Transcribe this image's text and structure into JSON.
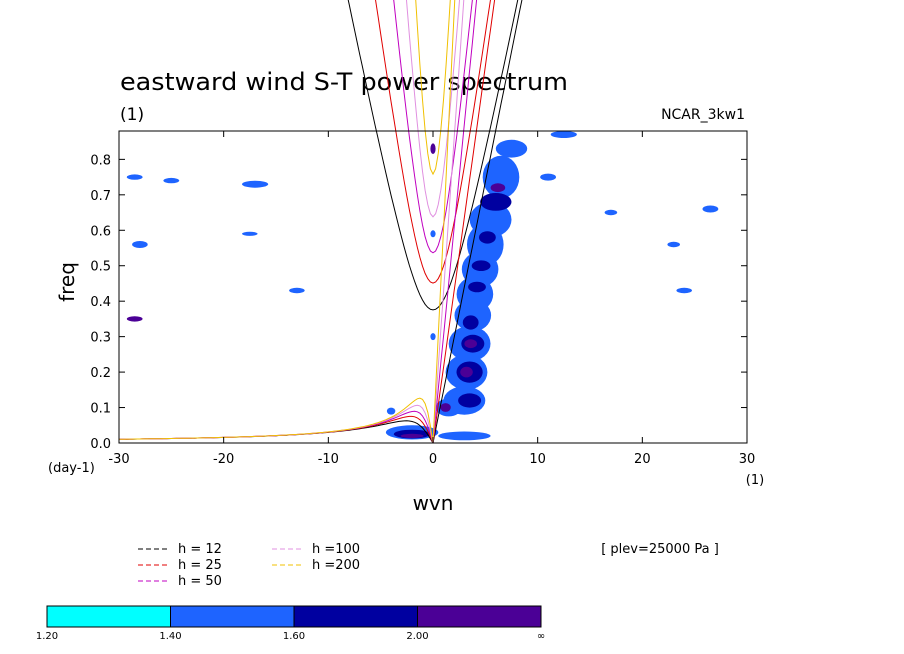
{
  "chart_data": {
    "type": "heatmap",
    "title": "eastward wind S-T power spectrum",
    "subtitle_left": "(1)",
    "subtitle_right": "NCAR_3kw1",
    "xlabel": "wvn",
    "ylabel": "freq",
    "x_unit": "(1)",
    "y_unit": "(day-1)",
    "xlim": [
      -30,
      30
    ],
    "ylim": [
      0.0,
      0.88
    ],
    "x_ticks": [
      -30,
      -20,
      -10,
      0,
      10,
      20,
      30
    ],
    "x_tick_labels": [
      "-30",
      "-20",
      "-10",
      "0",
      "10",
      "20",
      "30"
    ],
    "y_ticks": [
      0.0,
      0.1,
      0.2,
      0.3,
      0.4,
      0.5,
      0.6,
      0.7,
      0.8
    ],
    "y_tick_labels": [
      "0.0",
      "0.1",
      "0.2",
      "0.3",
      "0.4",
      "0.5",
      "0.6",
      "0.7",
      "0.8"
    ],
    "annotation": "[ plev=25000 Pa ]",
    "dispersion_curves": [
      {
        "label": "h = 12",
        "h": 12,
        "color": "#000000"
      },
      {
        "label": "h = 25",
        "h": 25,
        "color": "#e00000"
      },
      {
        "label": "h = 50",
        "h": 50,
        "color": "#c000c0"
      },
      {
        "label": "h =100",
        "h": 100,
        "color": "#e090e0"
      },
      {
        "label": "h =200",
        "h": 200,
        "color": "#f0c000"
      }
    ],
    "colorbar": {
      "levels": [
        "1.20",
        "1.40",
        "1.60",
        "2.00",
        "∞"
      ],
      "colors": [
        "#00ffff",
        "#1e64ff",
        "#0000a0",
        "#4b0096"
      ]
    },
    "power_regions": [
      {
        "x": 7.5,
        "y": 0.83,
        "w": 3.0,
        "h": 0.05,
        "level": 1
      },
      {
        "x": 6.5,
        "y": 0.75,
        "w": 3.5,
        "h": 0.12,
        "level": 1
      },
      {
        "x": 6.0,
        "y": 0.68,
        "w": 3.0,
        "h": 0.05,
        "level": 2
      },
      {
        "x": 6.2,
        "y": 0.72,
        "w": 1.4,
        "h": 0.025,
        "level": 3
      },
      {
        "x": 5.5,
        "y": 0.63,
        "w": 4.0,
        "h": 0.1,
        "level": 1
      },
      {
        "x": 5.0,
        "y": 0.56,
        "w": 3.5,
        "h": 0.12,
        "level": 1
      },
      {
        "x": 5.2,
        "y": 0.58,
        "w": 1.6,
        "h": 0.035,
        "level": 2
      },
      {
        "x": 4.5,
        "y": 0.49,
        "w": 3.5,
        "h": 0.1,
        "level": 1
      },
      {
        "x": 4.6,
        "y": 0.5,
        "w": 1.8,
        "h": 0.03,
        "level": 2
      },
      {
        "x": 4.0,
        "y": 0.42,
        "w": 3.5,
        "h": 0.1,
        "level": 1
      },
      {
        "x": 4.2,
        "y": 0.44,
        "w": 1.7,
        "h": 0.03,
        "level": 2
      },
      {
        "x": 3.8,
        "y": 0.36,
        "w": 3.5,
        "h": 0.09,
        "level": 1
      },
      {
        "x": 3.6,
        "y": 0.34,
        "w": 1.5,
        "h": 0.04,
        "level": 2
      },
      {
        "x": 3.5,
        "y": 0.28,
        "w": 4.0,
        "h": 0.1,
        "level": 1
      },
      {
        "x": 3.8,
        "y": 0.28,
        "w": 2.2,
        "h": 0.05,
        "level": 2
      },
      {
        "x": 3.6,
        "y": 0.28,
        "w": 1.2,
        "h": 0.025,
        "level": 3
      },
      {
        "x": 3.2,
        "y": 0.2,
        "w": 4.0,
        "h": 0.1,
        "level": 1
      },
      {
        "x": 3.5,
        "y": 0.2,
        "w": 2.5,
        "h": 0.06,
        "level": 2
      },
      {
        "x": 3.2,
        "y": 0.2,
        "w": 1.2,
        "h": 0.03,
        "level": 3
      },
      {
        "x": 3.0,
        "y": 0.12,
        "w": 4.0,
        "h": 0.08,
        "level": 1
      },
      {
        "x": 3.5,
        "y": 0.12,
        "w": 2.2,
        "h": 0.04,
        "level": 2
      },
      {
        "x": 1.5,
        "y": 0.1,
        "w": 2.5,
        "h": 0.05,
        "level": 1
      },
      {
        "x": 1.2,
        "y": 0.1,
        "w": 1.0,
        "h": 0.025,
        "level": 3
      },
      {
        "x": -2.0,
        "y": 0.03,
        "w": 5.0,
        "h": 0.04,
        "level": 1
      },
      {
        "x": -2.0,
        "y": 0.025,
        "w": 3.5,
        "h": 0.025,
        "level": 2
      },
      {
        "x": -2.0,
        "y": 0.02,
        "w": 2.2,
        "h": 0.012,
        "level": 3
      },
      {
        "x": 3.0,
        "y": 0.02,
        "w": 5.0,
        "h": 0.025,
        "level": 1
      },
      {
        "x": 0.0,
        "y": 0.83,
        "w": 0.5,
        "h": 0.03,
        "level": 3
      },
      {
        "x": 0.0,
        "y": 0.59,
        "w": 0.5,
        "h": 0.02,
        "level": 1
      },
      {
        "x": 0.0,
        "y": 0.3,
        "w": 0.5,
        "h": 0.02,
        "level": 1
      },
      {
        "x": 12.5,
        "y": 0.87,
        "w": 2.5,
        "h": 0.02,
        "level": 1
      },
      {
        "x": 11.0,
        "y": 0.75,
        "w": 1.5,
        "h": 0.02,
        "level": 1
      },
      {
        "x": -28.5,
        "y": 0.75,
        "w": 1.5,
        "h": 0.015,
        "level": 1
      },
      {
        "x": -25.0,
        "y": 0.74,
        "w": 1.5,
        "h": 0.015,
        "level": 1
      },
      {
        "x": -17.0,
        "y": 0.73,
        "w": 2.5,
        "h": 0.02,
        "level": 1
      },
      {
        "x": -28.0,
        "y": 0.56,
        "w": 1.5,
        "h": 0.02,
        "level": 1
      },
      {
        "x": -17.5,
        "y": 0.59,
        "w": 1.5,
        "h": 0.012,
        "level": 1
      },
      {
        "x": -28.5,
        "y": 0.35,
        "w": 1.5,
        "h": 0.015,
        "level": 3
      },
      {
        "x": -13.0,
        "y": 0.43,
        "w": 1.5,
        "h": 0.015,
        "level": 1
      },
      {
        "x": 26.5,
        "y": 0.66,
        "w": 1.5,
        "h": 0.02,
        "level": 1
      },
      {
        "x": 17.0,
        "y": 0.65,
        "w": 1.2,
        "h": 0.015,
        "level": 1
      },
      {
        "x": 24.0,
        "y": 0.43,
        "w": 1.5,
        "h": 0.015,
        "level": 1
      },
      {
        "x": 23.0,
        "y": 0.56,
        "w": 1.2,
        "h": 0.015,
        "level": 1
      },
      {
        "x": -4.0,
        "y": 0.09,
        "w": 0.8,
        "h": 0.02,
        "level": 1
      }
    ]
  }
}
